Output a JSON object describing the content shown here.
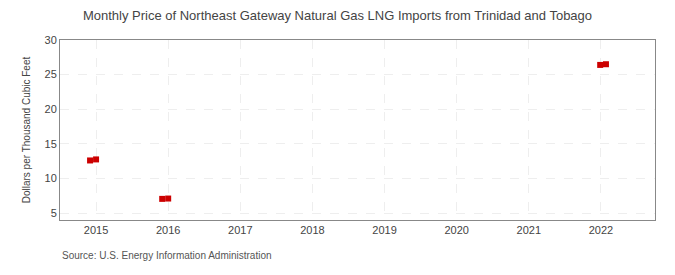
{
  "chart_data": {
    "type": "scatter",
    "title": "Monthly Price of Northeast Gateway Natural Gas LNG Imports from Trinidad and Tobago",
    "ylabel": "Dollars per Thousand Cubic Feet",
    "source": "Source: U.S. Energy Information Administration",
    "x": [
      2014.917,
      2015.0,
      2015.917,
      2016.0,
      2021.99,
      2022.07
    ],
    "values": [
      12.6,
      12.75,
      7.05,
      7.1,
      26.4,
      26.5
    ],
    "color": "#cc0000",
    "marker": "square",
    "xlim": [
      2014.5,
      2022.75
    ],
    "xticks": [
      2015,
      2016,
      2017,
      2018,
      2019,
      2020,
      2021,
      2022
    ],
    "ylim": [
      4,
      30
    ],
    "yticks": [
      5,
      10,
      15,
      20,
      25,
      30
    ],
    "grid": true
  }
}
